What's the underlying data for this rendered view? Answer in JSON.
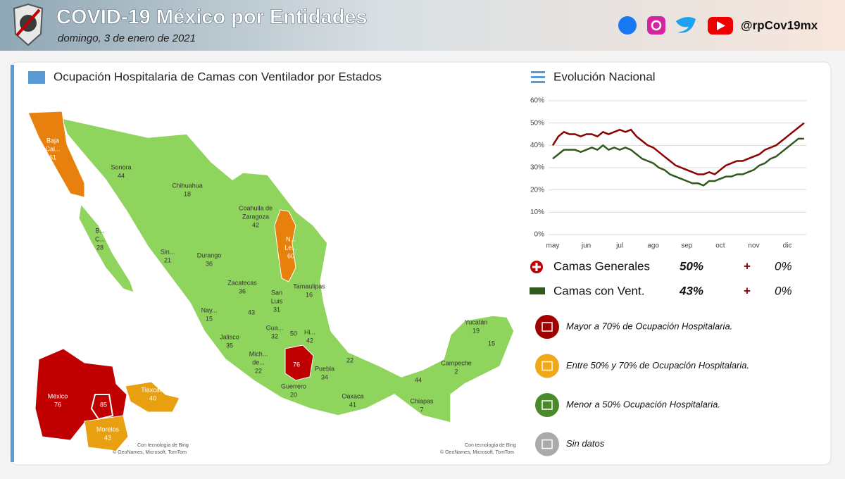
{
  "header": {
    "title": "COVID-19 México por Entidades",
    "date": "domingo, 3 de enero de 2021",
    "handle": "@rpCov19mx"
  },
  "map": {
    "title": "Ocupación Hospitalaria de Camas con Ventilador por Estados",
    "states": [
      {
        "label": [
          "Baja",
          "Cal..."
        ],
        "value": 61,
        "color": "#e8800e"
      },
      {
        "label": [
          "Sonora"
        ],
        "value": 44,
        "color": "#8fd45c"
      },
      {
        "label": [
          "Chihuahua"
        ],
        "value": 18,
        "color": "#8fd45c"
      },
      {
        "label": [
          "B...",
          "C..."
        ],
        "value": 28,
        "color": "#8fd45c"
      },
      {
        "label": [
          "Coahuila de",
          "Zaragoza"
        ],
        "value": 42,
        "color": "#8fd45c"
      },
      {
        "label": [
          "N...",
          "Le..."
        ],
        "value": 60,
        "color": "#e8800e"
      },
      {
        "label": [
          "Sin..."
        ],
        "value": 21,
        "color": "#8fd45c"
      },
      {
        "label": [
          "Durango"
        ],
        "value": 36,
        "color": "#8fd45c"
      },
      {
        "label": [
          "Tamaulipas"
        ],
        "value": 16,
        "color": "#8fd45c"
      },
      {
        "label": [
          "Zacatecas"
        ],
        "value": 36,
        "color": "#8fd45c"
      },
      {
        "label": [
          "San",
          "Luis"
        ],
        "value": 31,
        "color": "#8fd45c"
      },
      {
        "label": [
          "Nay..."
        ],
        "value": 15,
        "color": "#8fd45c"
      },
      {
        "value": 43,
        "color": "#8fd45c"
      },
      {
        "label": [
          "Gua..."
        ],
        "value": 32,
        "color": "#8fd45c"
      },
      {
        "value": 50,
        "color": "#8fd45c"
      },
      {
        "label": [
          "Hi..."
        ],
        "value": 42,
        "color": "#8fd45c"
      },
      {
        "label": [
          "Jalisco"
        ],
        "value": 35,
        "color": "#8fd45c"
      },
      {
        "label": [
          "Mich...",
          "de..."
        ],
        "value": 22,
        "color": "#8fd45c"
      },
      {
        "value": 76,
        "color": "#c00000"
      },
      {
        "label": [
          "Puebla"
        ],
        "value": 34,
        "color": "#8fd45c"
      },
      {
        "value": 22,
        "color": "#8fd45c"
      },
      {
        "label": [
          "Guerrero"
        ],
        "value": 20,
        "color": "#8fd45c"
      },
      {
        "label": [
          "Oaxaca"
        ],
        "value": 41,
        "color": "#8fd45c"
      },
      {
        "label": [
          "Chiapas"
        ],
        "value": 7,
        "color": "#8fd45c"
      },
      {
        "value": 44,
        "color": "#8fd45c"
      },
      {
        "label": [
          "Campeche"
        ],
        "value": 2,
        "color": "#8fd45c"
      },
      {
        "label": [
          "Yucatán"
        ],
        "value": 19,
        "color": "#8fd45c"
      },
      {
        "value": 15,
        "color": "#8fd45c"
      }
    ],
    "inset": [
      {
        "label": [
          "México"
        ],
        "value": 76,
        "color": "#c00000"
      },
      {
        "value": 85,
        "color": "#c00000"
      },
      {
        "label": [
          "Morelos"
        ],
        "value": 43,
        "color": "#e8a010"
      },
      {
        "label": [
          "Tlaxcala"
        ],
        "value": 40,
        "color": "#e8a010"
      }
    ],
    "credits": [
      [
        "Con tecnología de Bing",
        "© GeoNames, Microsoft, TomTom"
      ],
      [
        "Con tecnología de Bing",
        "© GeoNames, Microsoft, TomTom"
      ]
    ]
  },
  "chart_data": {
    "type": "line",
    "title": "Evolución Nacional",
    "categories": [
      "may",
      null,
      null,
      null,
      null,
      null,
      "jun",
      null,
      null,
      null,
      null,
      null,
      "jul",
      null,
      null,
      null,
      null,
      null,
      "ago",
      null,
      null,
      null,
      null,
      null,
      "sep",
      null,
      null,
      null,
      null,
      null,
      "oct",
      null,
      null,
      null,
      null,
      null,
      "nov",
      null,
      null,
      null,
      null,
      null,
      "dic",
      null,
      null,
      null
    ],
    "series": [
      {
        "name": "Camas Generales",
        "color": "#8b0000",
        "values": [
          40,
          44,
          46,
          45,
          45,
          44,
          45,
          45,
          44,
          46,
          45,
          46,
          47,
          46,
          47,
          44,
          42,
          40,
          39,
          37,
          35,
          33,
          31,
          30,
          29,
          28,
          27,
          27,
          28,
          27,
          29,
          31,
          32,
          33,
          33,
          34,
          35,
          36,
          38,
          39,
          40,
          42,
          44,
          46,
          48,
          50
        ]
      },
      {
        "name": "Camas con Vent.",
        "color": "#2e5a1c",
        "values": [
          34,
          36,
          38,
          38,
          38,
          37,
          38,
          39,
          38,
          40,
          38,
          39,
          38,
          39,
          38,
          36,
          34,
          33,
          32,
          30,
          29,
          27,
          26,
          25,
          24,
          23,
          23,
          22,
          24,
          24,
          25,
          26,
          26,
          27,
          27,
          28,
          29,
          31,
          32,
          34,
          35,
          37,
          39,
          41,
          43,
          43
        ]
      }
    ],
    "ylim": [
      0,
      60
    ],
    "yticks": [
      {
        "value": 0,
        "label": "0%"
      },
      {
        "value": 10,
        "label": "10%"
      },
      {
        "value": 20,
        "label": "20%"
      },
      {
        "value": 30,
        "label": "30%"
      },
      {
        "value": 40,
        "label": "40%"
      },
      {
        "value": 50,
        "label": "50%"
      },
      {
        "value": 60,
        "label": "60%"
      }
    ],
    "grid": true
  },
  "summary": [
    {
      "name": "Camas Generales",
      "value": "50%",
      "sign": "+",
      "change": "0%"
    },
    {
      "name": "Camas con Vent.",
      "value": "43%",
      "sign": "+",
      "change": "0%"
    }
  ],
  "legend": [
    {
      "label": "Mayor a 70% de Ocupación Hospitalaria.",
      "color": "#a00000"
    },
    {
      "label": "Entre 50% y 70% de Ocupación Hospitalaria.",
      "color": "#f0a818"
    },
    {
      "label": "Menor a 50% Ocupación Hospitalaria.",
      "color": "#4a8a2a"
    },
    {
      "label": "Sin datos",
      "color": "#aaaaaa"
    }
  ]
}
